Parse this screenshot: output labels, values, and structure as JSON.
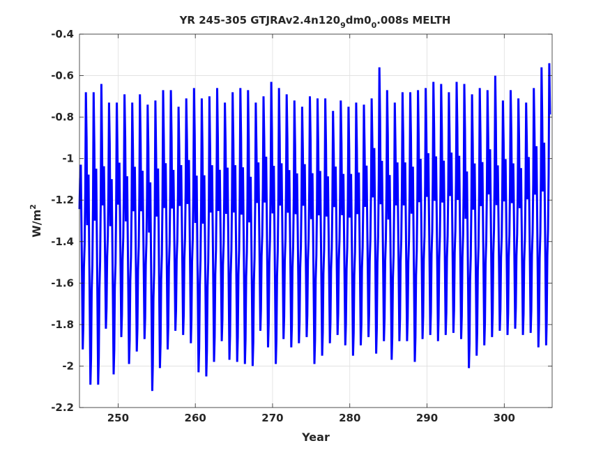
{
  "chart_data": {
    "type": "line",
    "title": {
      "prefix": "YR 245-305 GTJRAv2.4n120",
      "sub1": "9",
      "mid": "dm0",
      "sub2": "0",
      "suffix": ".008s MELTH"
    },
    "xlabel": "Year",
    "ylabel": {
      "base": "W/m",
      "sup": "2"
    },
    "xlim": [
      245,
      306.2
    ],
    "ylim": [
      -2.2,
      -0.4
    ],
    "xticks": [
      250,
      260,
      270,
      280,
      290,
      300
    ],
    "xtick_labels": [
      "250",
      "260",
      "270",
      "280",
      "290",
      "300"
    ],
    "yticks": [
      -0.4,
      -0.6,
      -0.8,
      -1.0,
      -1.2,
      -1.4,
      -1.6,
      -1.8,
      -2.0,
      -2.2
    ],
    "ytick_labels": [
      "-0.4",
      "-0.6",
      "-0.8",
      "-1",
      "-1.2",
      "-1.4",
      "-1.6",
      "-1.8",
      "-2",
      "-2.2"
    ],
    "grid": true,
    "series": [
      {
        "color": "#0000ff",
        "seasonal_cycle": {
          "description_units": "W/m2 relative within each year",
          "phase": [
            0.0,
            0.08,
            0.17,
            0.25,
            0.33,
            0.42,
            0.5,
            0.58,
            0.67,
            0.75,
            0.83,
            0.92
          ],
          "shape": [
            -1.25,
            -1.12,
            -1.06,
            -1.3,
            -1.55,
            -1.85,
            -1.75,
            -1.5,
            -1.4,
            -1.18,
            -0.75,
            -0.95
          ]
        },
        "annual_max": [
          -0.68,
          -0.68,
          -0.64,
          -0.73,
          -0.73,
          -0.69,
          -0.73,
          -0.69,
          -0.74,
          -0.72,
          -0.67,
          -0.67,
          -0.75,
          -0.71,
          -0.66,
          -0.71,
          -0.7,
          -0.66,
          -0.73,
          -0.68,
          -0.66,
          -0.67,
          -0.73,
          -0.7,
          -0.63,
          -0.66,
          -0.69,
          -0.72,
          -0.75,
          -0.7,
          -0.71,
          -0.71,
          -0.77,
          -0.72,
          -0.75,
          -0.73,
          -0.74,
          -0.71,
          -0.56,
          -0.67,
          -0.73,
          -0.68,
          -0.68,
          -0.67,
          -0.66,
          -0.63,
          -0.64,
          -0.68,
          -0.63,
          -0.64,
          -0.69,
          -0.66,
          -0.67,
          -0.6,
          -0.72,
          -0.67,
          -0.71,
          -0.73,
          -0.66,
          -0.56,
          -0.54
        ],
        "annual_min": [
          -1.92,
          -2.09,
          -2.09,
          -1.82,
          -2.04,
          -1.86,
          -1.99,
          -1.93,
          -1.87,
          -2.12,
          -2.01,
          -1.92,
          -1.83,
          -1.85,
          -1.89,
          -2.03,
          -2.05,
          -1.98,
          -1.88,
          -1.97,
          -1.98,
          -1.99,
          -2.0,
          -1.83,
          -1.91,
          -1.99,
          -1.87,
          -1.91,
          -1.89,
          -1.86,
          -1.99,
          -1.95,
          -1.89,
          -1.85,
          -1.9,
          -1.95,
          -1.9,
          -1.86,
          -1.94,
          -1.88,
          -1.97,
          -1.88,
          -1.88,
          -1.98,
          -1.87,
          -1.85,
          -1.88,
          -1.85,
          -1.84,
          -1.87,
          -2.01,
          -1.95,
          -1.9,
          -1.86,
          -1.83,
          -1.85,
          -1.82,
          -1.85,
          -1.84,
          -1.91,
          -1.9
        ]
      }
    ]
  }
}
